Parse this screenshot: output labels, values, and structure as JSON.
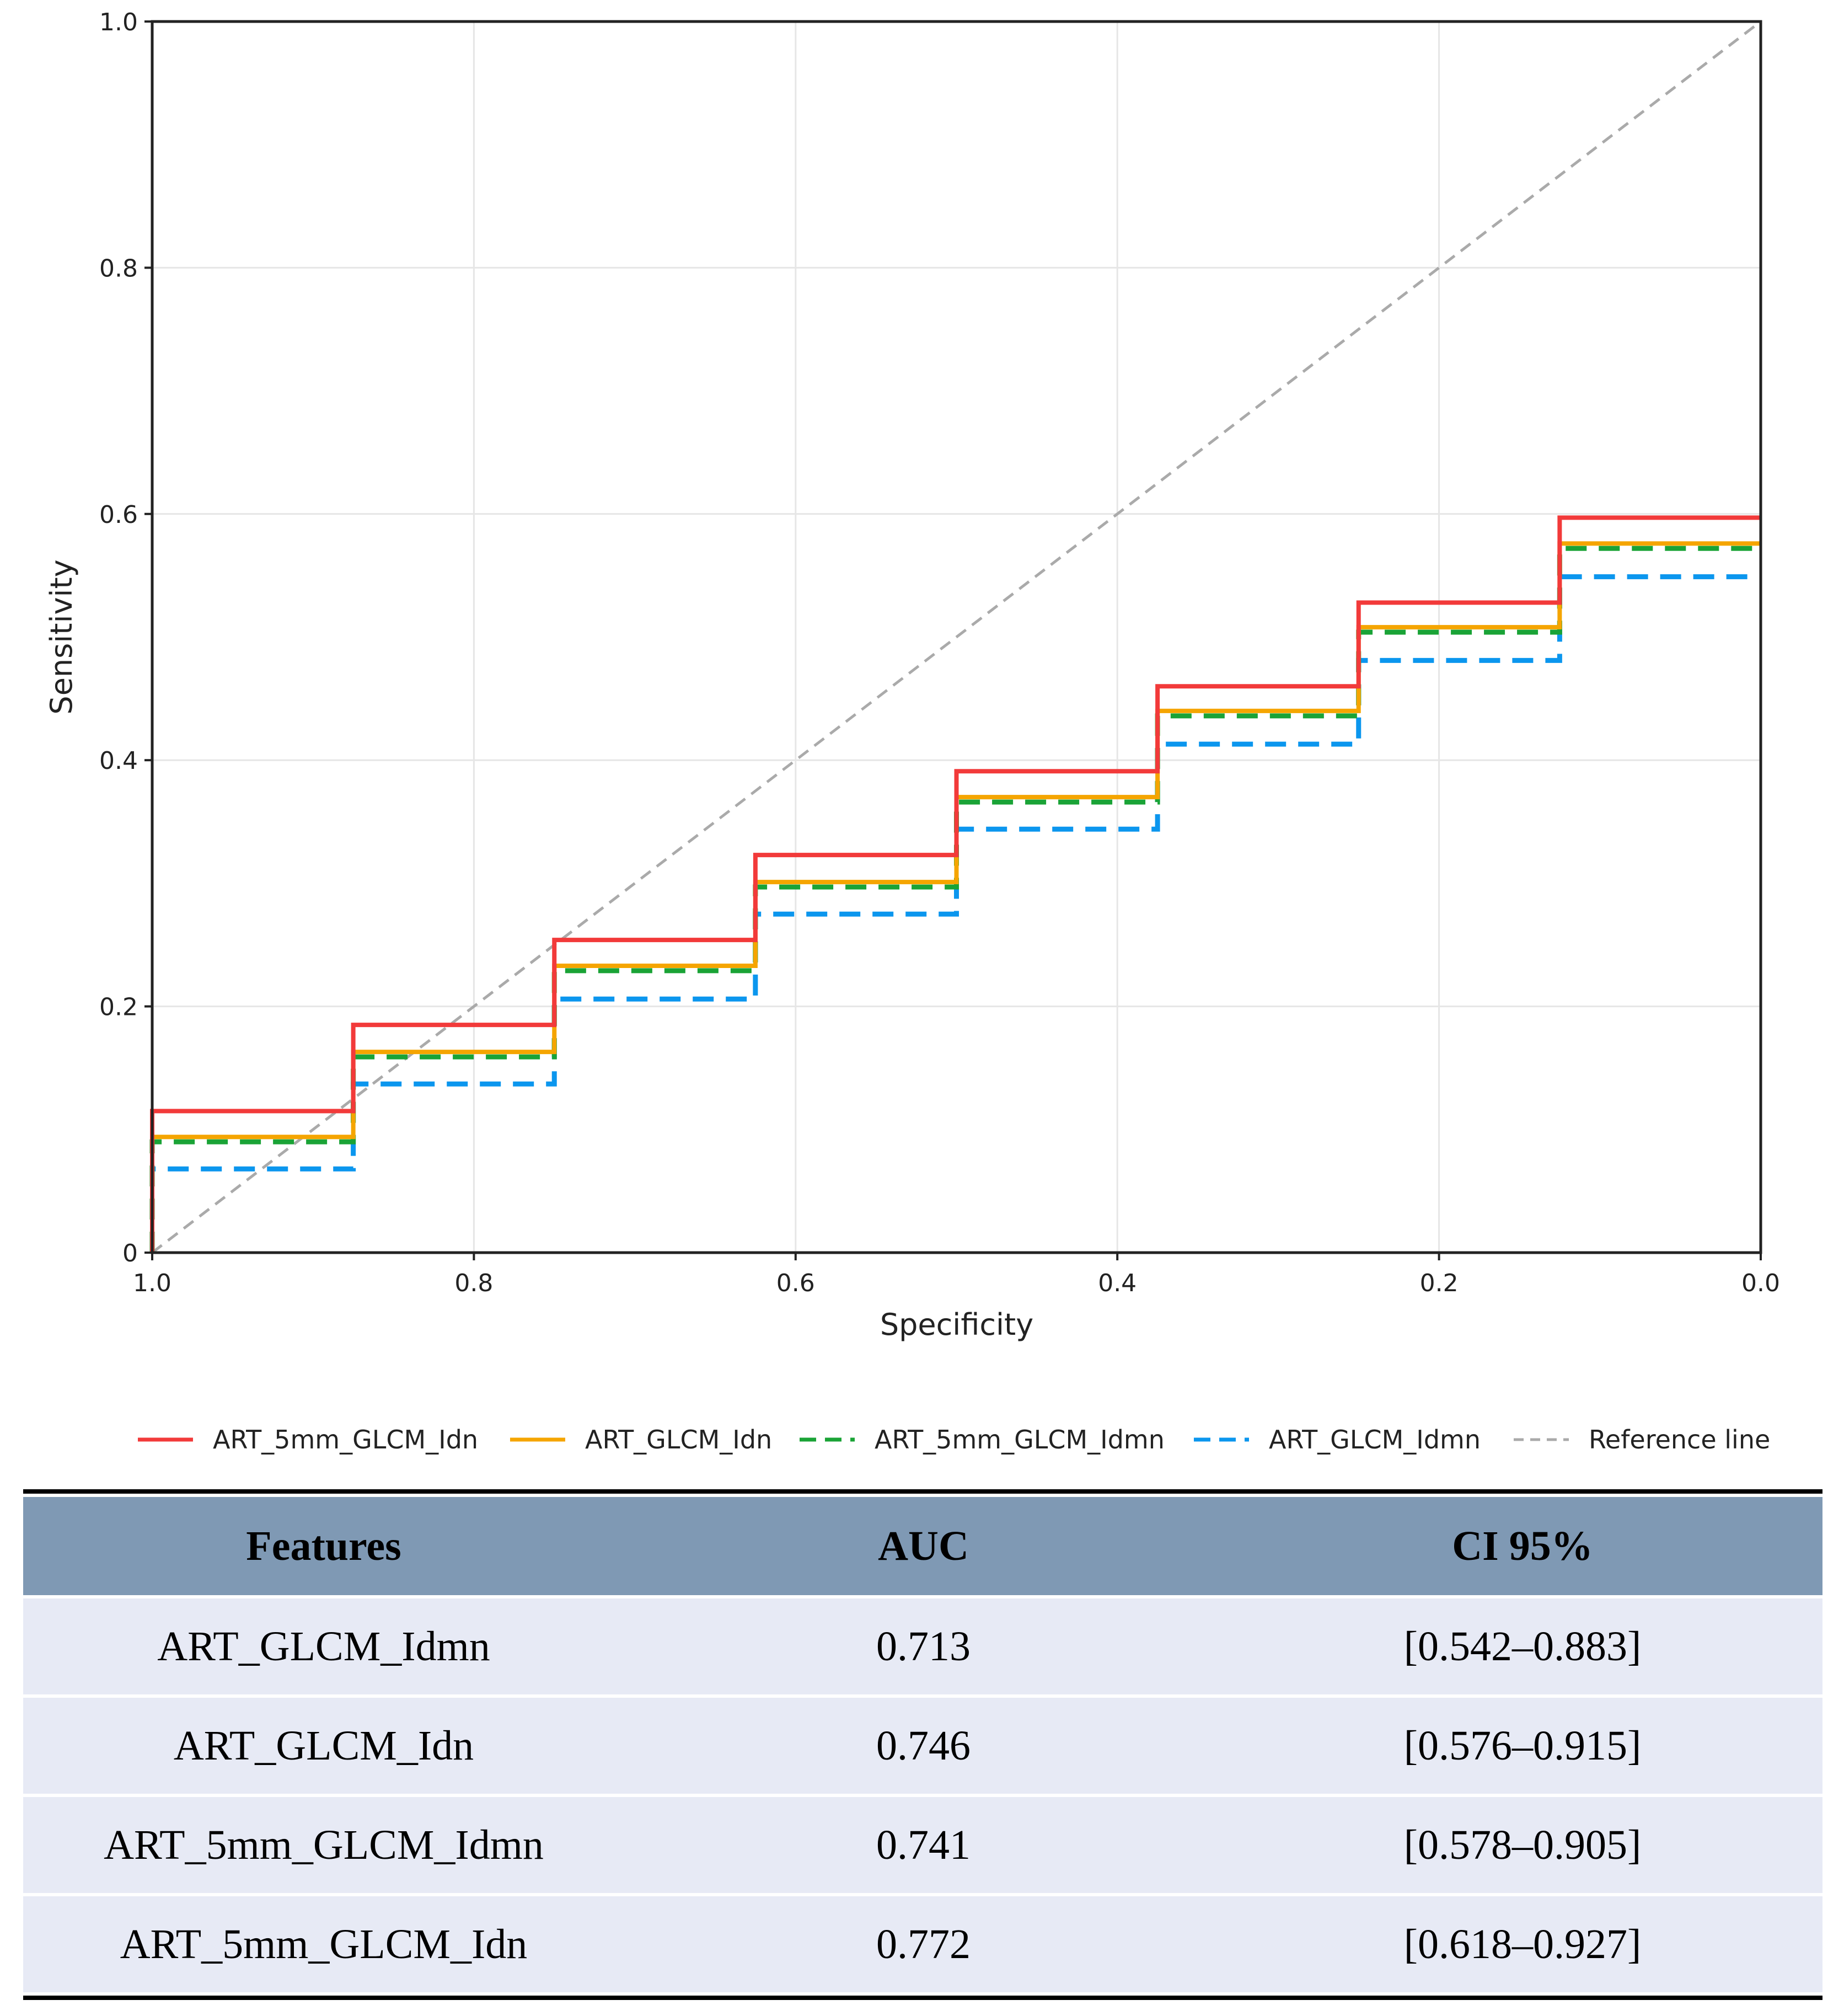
{
  "chart_data": {
    "type": "line",
    "xlabel": "Specificity",
    "ylabel": "Sensitivity",
    "xlim": [
      1.0,
      0.0
    ],
    "ylim": [
      0,
      1.0
    ],
    "x_reversed": true,
    "grid": true,
    "xticks": [
      "1.0",
      "0.8",
      "0.6",
      "0.4",
      "0.2",
      "0.0"
    ],
    "xtick_values": [
      1.0,
      0.8,
      0.6,
      0.4,
      0.2,
      0.0
    ],
    "yticks": [
      "0",
      "0.2",
      "0.4",
      "0.6",
      "0.8",
      "1.0"
    ],
    "ytick_values": [
      0,
      0.2,
      0.4,
      0.6,
      0.8,
      1.0
    ],
    "legend_position": "bottom",
    "step_x": [
      1.0,
      0.875,
      0.75,
      0.625,
      0.5,
      0.375,
      0.25,
      0.125,
      0.0
    ],
    "series": [
      {
        "name": "ART_5mm_GLCM_Idn",
        "color": "#f23a3a",
        "dash": "solid",
        "values": [
          0.115,
          0.185,
          0.254,
          0.323,
          0.391,
          0.46,
          0.528,
          0.597
        ]
      },
      {
        "name": "ART_GLCM_Idn",
        "color": "#f5a500",
        "dash": "solid",
        "values": [
          0.094,
          0.163,
          0.233,
          0.301,
          0.37,
          0.44,
          0.508,
          0.576
        ]
      },
      {
        "name": "ART_5mm_GLCM_Idmn",
        "color": "#1aa336",
        "dash": "dashed",
        "values": [
          0.09,
          0.159,
          0.229,
          0.297,
          0.366,
          0.436,
          0.504,
          0.572
        ]
      },
      {
        "name": "ART_GLCM_Idmn",
        "color": "#0b96ee",
        "dash": "dashed",
        "values": [
          0.068,
          0.137,
          0.206,
          0.275,
          0.344,
          0.413,
          0.481,
          0.549
        ]
      },
      {
        "name": "Reference line",
        "color": "#aaaaaa",
        "dash": "dashed",
        "values": [
          0,
          1
        ]
      }
    ]
  },
  "table": {
    "headers": [
      "Features",
      "AUC",
      "CI 95%"
    ],
    "rows": [
      [
        "ART_GLCM_Idmn",
        "0.713",
        "[0.542–0.883]"
      ],
      [
        "ART_GLCM_Idn",
        "0.746",
        "[0.576–0.915]"
      ],
      [
        "ART_5mm_GLCM_Idmn",
        "0.741",
        "[0.578–0.905]"
      ],
      [
        "ART_5mm_GLCM_Idn",
        "0.772",
        "[0.618–0.927]"
      ]
    ]
  }
}
